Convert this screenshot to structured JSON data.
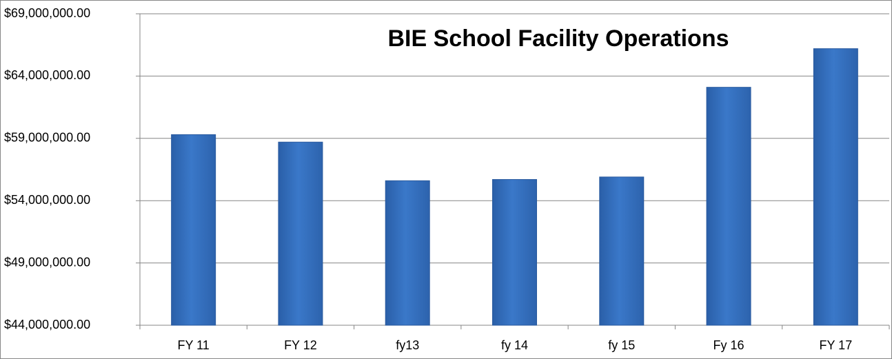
{
  "chart_data": {
    "type": "bar",
    "title": "BIE School Facility Operations",
    "categories": [
      "FY 11",
      "FY 12",
      "fy13",
      "fy 14",
      "fy 15",
      "Fy 16",
      "FY 17"
    ],
    "values": [
      59300000,
      58700000,
      55600000,
      55700000,
      55900000,
      63100000,
      66200000
    ],
    "color": "#3a78c9",
    "ylim": [
      44000000,
      69000000
    ],
    "yticks": [
      {
        "value": 44000000,
        "label": "$44,000,000.00"
      },
      {
        "value": 49000000,
        "label": "$49,000,000.00"
      },
      {
        "value": 54000000,
        "label": "$54,000,000.00"
      },
      {
        "value": 59000000,
        "label": "$59,000,000.00"
      },
      {
        "value": 64000000,
        "label": "$64,000,000.00"
      },
      {
        "value": 69000000,
        "label": "$69,000,000.00"
      }
    ],
    "grid": true
  }
}
